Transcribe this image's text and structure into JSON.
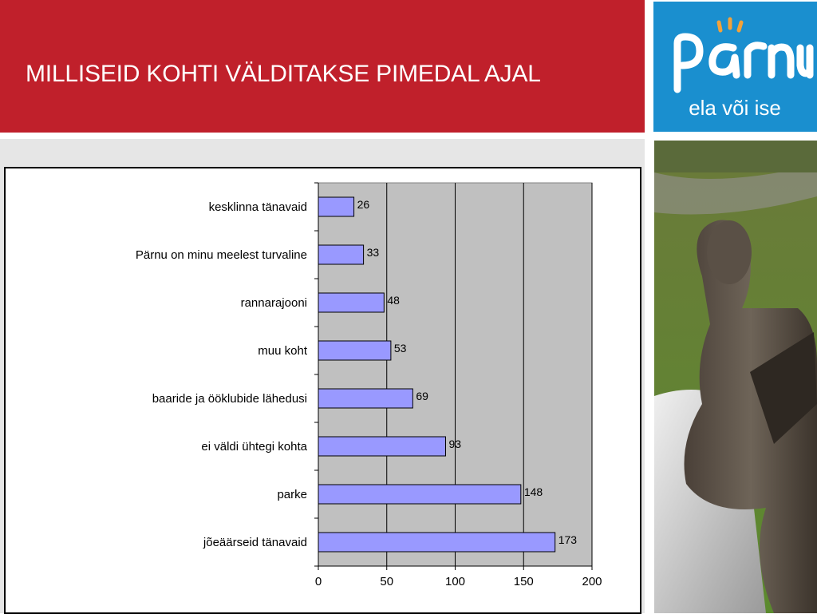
{
  "slide": {
    "title": "MILLISEID KOHTI VÄLDITAKSE PIMEDAL AJAL"
  },
  "logo": {
    "wordmark": "pärnu",
    "tagline": "ela või ise",
    "colors": {
      "background": "#1a8fcf",
      "text": "#ffffff",
      "sun": "#f2a23a"
    }
  },
  "colors": {
    "header": "#c0202b",
    "plot_area": "#c0c0c0",
    "bar_fill": "#9999ff",
    "bar_stroke": "#000000"
  },
  "chart_data": {
    "type": "bar",
    "orientation": "horizontal",
    "categories": [
      "kesklinna tänavaid",
      "Pärnu on minu meelest turvaline",
      "rannarajooni",
      "muu koht",
      "baaride ja ööklubide lähedusi",
      "ei väldi ühtegi kohta",
      "parke",
      "jõeäärseid tänavaid"
    ],
    "values": [
      26,
      33,
      48,
      53,
      69,
      93,
      148,
      173
    ],
    "xlim": [
      0,
      200
    ],
    "xticks": [
      "0",
      "50",
      "100",
      "150",
      "200"
    ],
    "title": "",
    "xlabel": "",
    "ylabel": "",
    "grid": "vertical",
    "data_labels": true
  }
}
